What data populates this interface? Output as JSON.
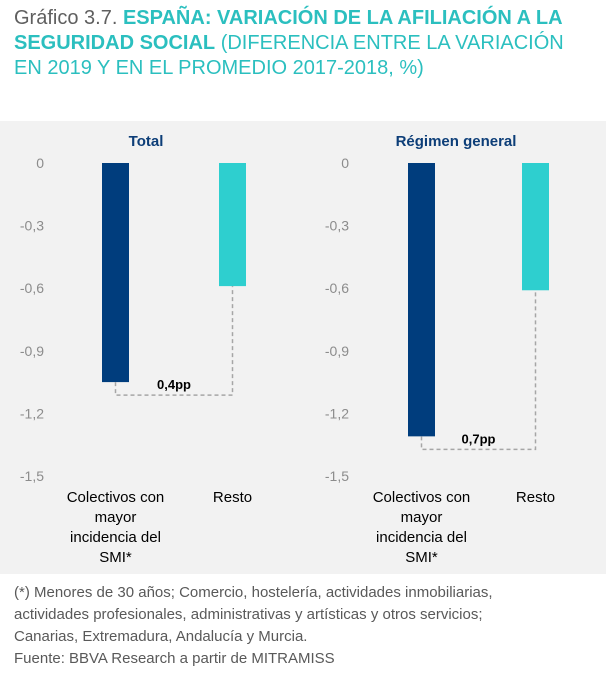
{
  "title": {
    "prefix": "Gráfico 3.7.",
    "bold": "ESPAÑA: VARIACIÓN DE LA AFILIACIÓN A LA SEGURIDAD SOCIAL",
    "rest": "(DIFERENCIA ENTRE LA VARIACIÓN EN 2019 Y EN EL PROMEDIO 2017-2018, %)"
  },
  "colors": {
    "dark_bar": "#003d7d",
    "light_bar": "#2ecfcf",
    "title": "#2bbfbf",
    "panel_title": "#0d3e78"
  },
  "chart_data": [
    {
      "type": "bar",
      "title": "Total",
      "categories": [
        "Colectivos con mayor incidencia del SMI*",
        "Resto"
      ],
      "category_lines": [
        [
          "Colectivos con",
          "mayor",
          "incidencia del",
          "SMI*"
        ],
        [
          "Resto"
        ]
      ],
      "values": [
        -1.05,
        -0.59
      ],
      "ylim": [
        -1.5,
        0
      ],
      "yticks": [
        0,
        -0.3,
        -0.6,
        -0.9,
        -1.2,
        -1.5
      ],
      "ytick_labels": [
        "0",
        "-0,3",
        "-0,6",
        "-0,9",
        "-1,2",
        "-1,5"
      ],
      "annotation": "0,4pp",
      "xlabel": "",
      "ylabel": ""
    },
    {
      "type": "bar",
      "title": "Régimen general",
      "categories": [
        "Colectivos con mayor incidencia del SMI*",
        "Resto"
      ],
      "category_lines": [
        [
          "Colectivos con",
          "mayor",
          "incidencia del",
          "SMI*"
        ],
        [
          "Resto"
        ]
      ],
      "values": [
        -1.31,
        -0.61
      ],
      "ylim": [
        -1.5,
        0
      ],
      "yticks": [
        0,
        -0.3,
        -0.6,
        -0.9,
        -1.2,
        -1.5
      ],
      "ytick_labels": [
        "0",
        "-0,3",
        "-0,6",
        "-0,9",
        "-1,2",
        "-1,5"
      ],
      "annotation": "0,7pp",
      "xlabel": "",
      "ylabel": ""
    }
  ],
  "footer": {
    "note_lines": [
      "(*) Menores de 30 años; Comercio, hostelería, actividades inmobiliarias,",
      "actividades profesionales, administrativas y artísticas y otros servicios;",
      "Canarias, Extremadura, Andalucía y Murcia."
    ],
    "source": "Fuente: BBVA Research a partir de MITRAMISS"
  }
}
